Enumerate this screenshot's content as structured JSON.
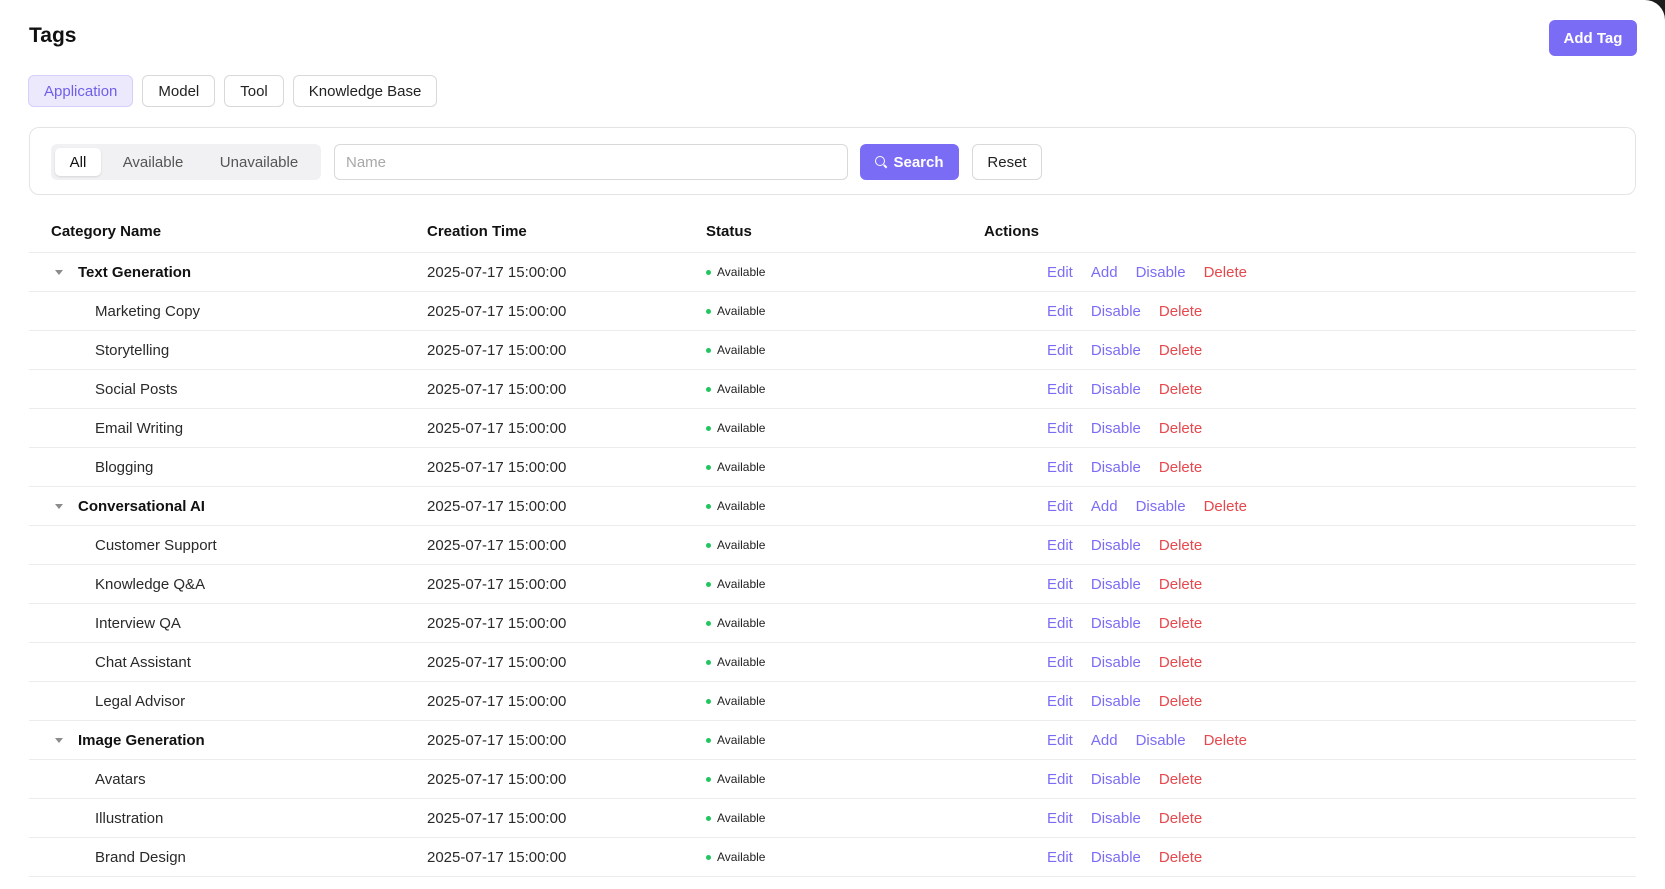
{
  "page": {
    "title": "Tags",
    "add_button": "Add Tag"
  },
  "type_tabs": [
    {
      "label": "Application",
      "active": true
    },
    {
      "label": "Model",
      "active": false
    },
    {
      "label": "Tool",
      "active": false
    },
    {
      "label": "Knowledge Base",
      "active": false
    }
  ],
  "filters": {
    "segments": [
      "All",
      "Available",
      "Unavailable"
    ],
    "active_segment": "All",
    "search_placeholder": "Name",
    "search_value": "",
    "search_button": "Search",
    "reset_button": "Reset"
  },
  "table": {
    "headers": {
      "name": "Category Name",
      "time": "Creation Time",
      "status": "Status",
      "actions": "Actions"
    },
    "action_labels": {
      "edit": "Edit",
      "add": "Add",
      "disable": "Disable",
      "delete": "Delete"
    },
    "rows": [
      {
        "name": "Text Generation",
        "parent": true,
        "time": "2025-07-17 15:00:00",
        "status": "Available"
      },
      {
        "name": "Marketing Copy",
        "parent": false,
        "time": "2025-07-17 15:00:00",
        "status": "Available"
      },
      {
        "name": "Storytelling",
        "parent": false,
        "time": "2025-07-17 15:00:00",
        "status": "Available"
      },
      {
        "name": "Social Posts",
        "parent": false,
        "time": "2025-07-17 15:00:00",
        "status": "Available"
      },
      {
        "name": "Email Writing",
        "parent": false,
        "time": "2025-07-17 15:00:00",
        "status": "Available"
      },
      {
        "name": "Blogging",
        "parent": false,
        "time": "2025-07-17 15:00:00",
        "status": "Available"
      },
      {
        "name": "Conversational AI",
        "parent": true,
        "time": "2025-07-17 15:00:00",
        "status": "Available"
      },
      {
        "name": "Customer Support",
        "parent": false,
        "time": "2025-07-17 15:00:00",
        "status": "Available"
      },
      {
        "name": "Knowledge Q&A",
        "parent": false,
        "time": "2025-07-17 15:00:00",
        "status": "Available"
      },
      {
        "name": "Interview QA",
        "parent": false,
        "time": "2025-07-17 15:00:00",
        "status": "Available"
      },
      {
        "name": "Chat Assistant",
        "parent": false,
        "time": "2025-07-17 15:00:00",
        "status": "Available"
      },
      {
        "name": "Legal Advisor",
        "parent": false,
        "time": "2025-07-17 15:00:00",
        "status": "Available"
      },
      {
        "name": "Image Generation",
        "parent": true,
        "time": "2025-07-17 15:00:00",
        "status": "Available"
      },
      {
        "name": "Avatars",
        "parent": false,
        "time": "2025-07-17 15:00:00",
        "status": "Available"
      },
      {
        "name": "Illustration",
        "parent": false,
        "time": "2025-07-17 15:00:00",
        "status": "Available"
      },
      {
        "name": "Brand Design",
        "parent": false,
        "time": "2025-07-17 15:00:00",
        "status": "Available"
      }
    ]
  },
  "colors": {
    "accent": "#7b6cf6",
    "danger": "#e5484d",
    "status_available": "#22c55e"
  }
}
